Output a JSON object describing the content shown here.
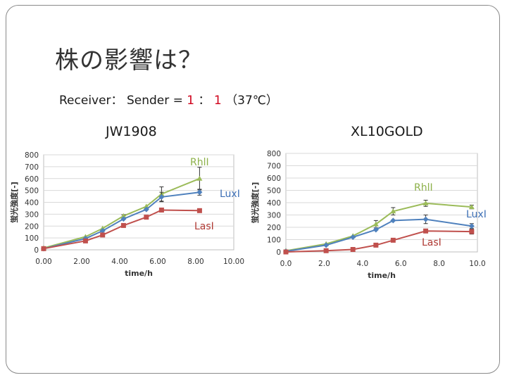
{
  "slide": {
    "title": "株の影響は？",
    "subtitle_prefix": "Receiver： Sender = ",
    "ratio_a": "1",
    "ratio_sep": " ： ",
    "ratio_b": "1",
    "subtitle_suffix": " （37℃）"
  },
  "colors": {
    "rhli": "#9bbb59",
    "luxi": "#4f81bd",
    "lasi": "#c0504d",
    "label_rhli": "#8db14a",
    "label_luxi": "#3d6fb5",
    "label_lasi": "#b03a34"
  },
  "chart_data": [
    {
      "type": "line",
      "title": "JW1908",
      "xlabel": "time/h",
      "ylabel": "蛍光強度[-]",
      "xlim": [
        0,
        10
      ],
      "ylim": [
        0,
        800
      ],
      "xticks": [
        "0.00",
        "2.00",
        "4.00",
        "6.00",
        "8.00",
        "10.00"
      ],
      "yticks": [
        "0",
        "100",
        "200",
        "300",
        "400",
        "500",
        "600",
        "700",
        "800"
      ],
      "grid": true,
      "series": [
        {
          "name": "RhlI",
          "x": [
            0,
            2.2,
            3.1,
            4.2,
            5.4,
            6.2,
            8.2
          ],
          "y": [
            15,
            110,
            180,
            285,
            365,
            470,
            600
          ],
          "err": [
            0,
            0,
            0,
            10,
            0,
            60,
            95
          ]
        },
        {
          "name": "LuxI",
          "x": [
            0,
            2.2,
            3.1,
            4.2,
            5.4,
            6.2,
            8.2
          ],
          "y": [
            10,
            95,
            160,
            260,
            340,
            445,
            485
          ],
          "err": [
            0,
            0,
            0,
            0,
            0,
            40,
            25
          ]
        },
        {
          "name": "LasI",
          "x": [
            0,
            2.2,
            3.1,
            4.2,
            5.4,
            6.2,
            8.2
          ],
          "y": [
            10,
            75,
            125,
            205,
            275,
            335,
            330
          ],
          "err": [
            0,
            0,
            0,
            0,
            0,
            0,
            0
          ]
        }
      ]
    },
    {
      "type": "line",
      "title": "XL10GOLD",
      "xlabel": "time/h",
      "ylabel": "蛍光強度[-]",
      "xlim": [
        0,
        10
      ],
      "ylim": [
        0,
        800
      ],
      "xticks": [
        "0.0",
        "2.0",
        "4.0",
        "6.0",
        "8.0",
        "10.0"
      ],
      "yticks": [
        "0",
        "100",
        "200",
        "300",
        "400",
        "500",
        "600",
        "700",
        "800"
      ],
      "grid": true,
      "series": [
        {
          "name": "RhlI",
          "x": [
            0,
            2.1,
            3.5,
            4.7,
            5.6,
            7.3,
            9.7
          ],
          "y": [
            10,
            65,
            130,
            225,
            330,
            395,
            365
          ],
          "err": [
            0,
            0,
            0,
            30,
            30,
            25,
            15
          ]
        },
        {
          "name": "LuxI",
          "x": [
            0,
            2.1,
            3.5,
            4.7,
            5.6,
            7.3,
            9.7
          ],
          "y": [
            5,
            55,
            120,
            180,
            255,
            265,
            210
          ],
          "err": [
            0,
            0,
            0,
            0,
            0,
            35,
            20
          ]
        },
        {
          "name": "LasI",
          "x": [
            0,
            2.1,
            3.5,
            4.7,
            5.6,
            7.3,
            9.7
          ],
          "y": [
            0,
            10,
            20,
            55,
            95,
            170,
            165
          ],
          "err": [
            0,
            0,
            0,
            0,
            0,
            0,
            20
          ]
        }
      ]
    }
  ]
}
